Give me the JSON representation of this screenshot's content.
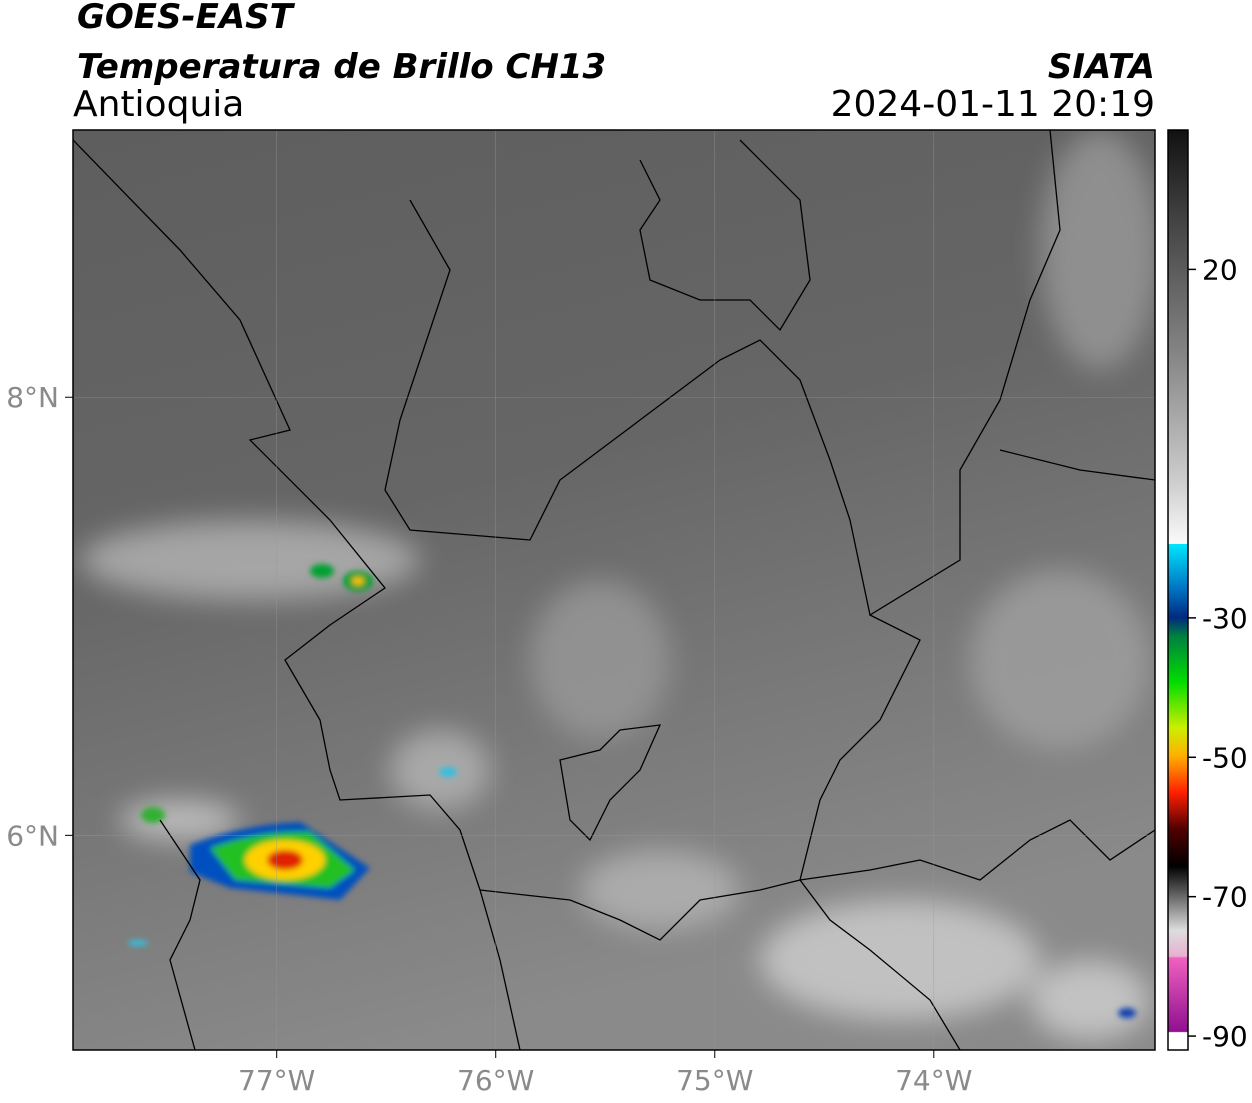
{
  "header": {
    "title": "GOES-EAST",
    "subtitle": "Temperatura de Brillo CH13",
    "region": "Antioquia",
    "source": "SIATA",
    "timestamp": "2024-01-11 20:19"
  },
  "map": {
    "xlim": [
      -77.93,
      -72.99
    ],
    "ylim": [
      5.02,
      9.22
    ],
    "xticks": [
      {
        "value": -77,
        "label": "77°W"
      },
      {
        "value": -76,
        "label": "76°W"
      },
      {
        "value": -75,
        "label": "75°W"
      },
      {
        "value": -74,
        "label": "74°W"
      }
    ],
    "yticks": [
      {
        "value": 8,
        "label": "8°N"
      },
      {
        "value": 6,
        "label": "6°N"
      }
    ]
  },
  "colorbar": {
    "range": [
      -92,
      40
    ],
    "ticks": [
      20,
      -30,
      -50,
      -70,
      -90
    ]
  }
}
